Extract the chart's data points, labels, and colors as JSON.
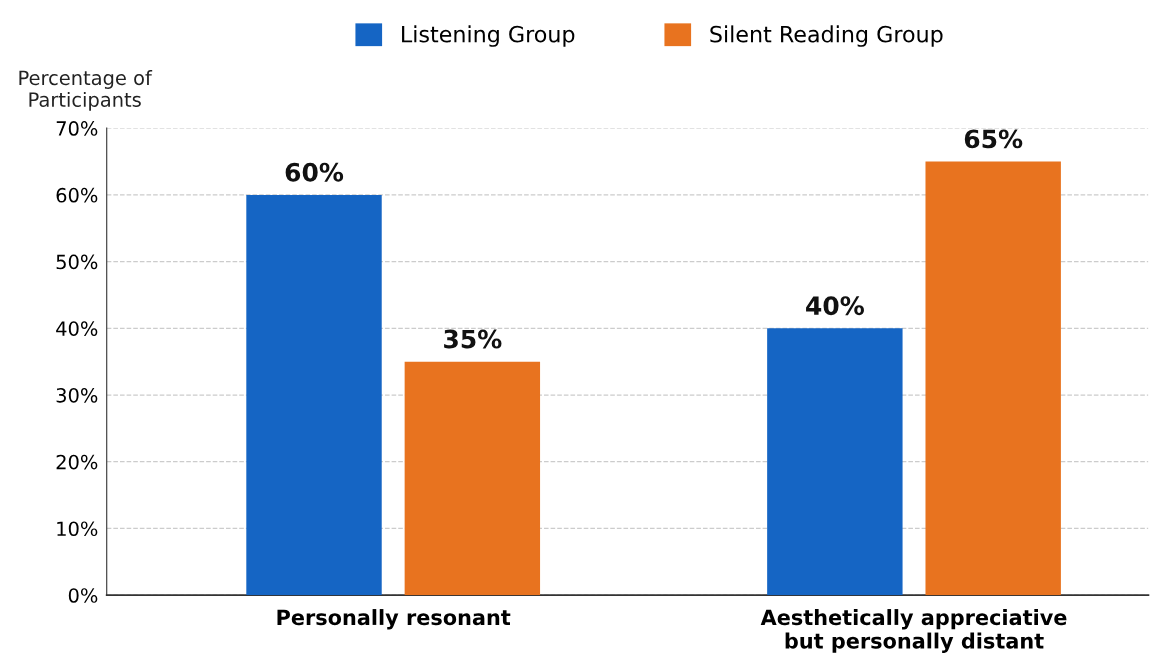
{
  "chart_data": {
    "type": "bar",
    "ylabel": "Percentage of\nParticipants",
    "categories": [
      "Personally resonant",
      "Aesthetically appreciative\nbut personally distant"
    ],
    "series": [
      {
        "name": "Listening Group",
        "color": "#1565c4",
        "values": [
          60,
          40
        ],
        "value_labels": [
          "60%",
          "40%"
        ]
      },
      {
        "name": "Silent Reading Group",
        "color": "#e8731f",
        "values": [
          35,
          65
        ],
        "value_labels": [
          "35%",
          "65%"
        ]
      }
    ],
    "ylim": [
      0,
      70
    ],
    "yticks": [
      {
        "value": 0,
        "label": "0%"
      },
      {
        "value": 10,
        "label": "10%"
      },
      {
        "value": 20,
        "label": "20%"
      },
      {
        "value": 30,
        "label": "30%"
      },
      {
        "value": 40,
        "label": "40%"
      },
      {
        "value": 50,
        "label": "50%"
      },
      {
        "value": 60,
        "label": "60%"
      },
      {
        "value": 70,
        "label": "70%"
      }
    ],
    "grid": "y",
    "legend": "top"
  }
}
